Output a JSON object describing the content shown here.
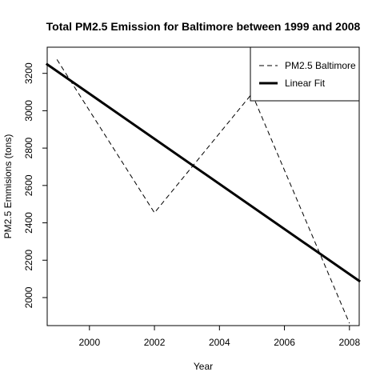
{
  "chart_data": {
    "type": "line",
    "title": "Total PM2.5 Emission for Baltimore between 1999 and 2008",
    "xlabel": "Year",
    "ylabel": "PM2.5 Emmisions (tons)",
    "xlim": [
      1998.7,
      2008.3
    ],
    "ylim": [
      1850,
      3340
    ],
    "xticks": [
      2000,
      2002,
      2004,
      2006,
      2008
    ],
    "yticks": [
      2000,
      2200,
      2400,
      2600,
      2800,
      3000,
      3200
    ],
    "grid": false,
    "legend_position": "top-right",
    "series": [
      {
        "name": "PM2.5 Baltimore",
        "style": "dashed",
        "color": "#000000",
        "x": [
          1999,
          2002,
          2005,
          2008
        ],
        "y": [
          3274.18,
          2453.92,
          3091.35,
          1862.28
        ]
      },
      {
        "name": "Linear Fit",
        "style": "solid-thick",
        "color": "#000000",
        "x": [
          1998.7,
          2008.3
        ],
        "y": [
          3248,
          2089
        ]
      }
    ]
  }
}
